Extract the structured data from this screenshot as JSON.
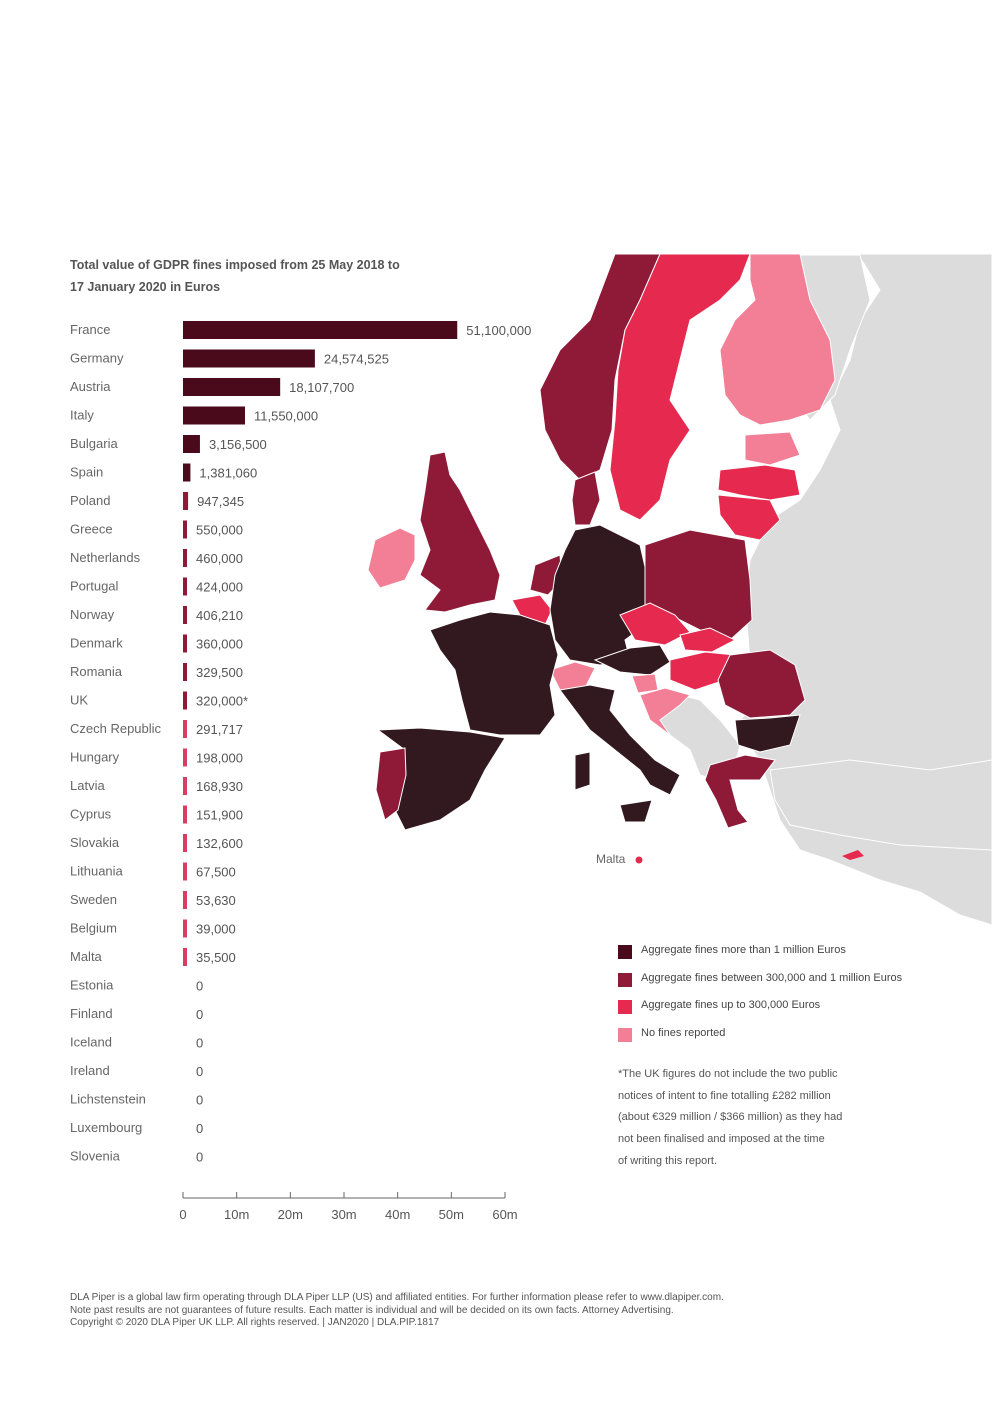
{
  "chart_data": {
    "type": "bar",
    "orientation": "horizontal",
    "title_lines": [
      "Total value of GDPR fines imposed from 25 May 2018 to",
      "17 January 2020 in Euros"
    ],
    "categories": [
      "France",
      "Germany",
      "Austria",
      "Italy",
      "Bulgaria",
      "Spain",
      "Poland",
      "Greece",
      "Netherlands",
      "Portugal",
      "Norway",
      "Denmark",
      "Romania",
      "UK",
      "Czech Republic",
      "Hungary",
      "Latvia",
      "Cyprus",
      "Slovakia",
      "Lithuania",
      "Sweden",
      "Belgium",
      "Malta",
      "Estonia",
      "Finland",
      "Iceland",
      "Ireland",
      "Lichstenstein",
      "Luxembourg",
      "Slovenia"
    ],
    "values": [
      51100000,
      24574525,
      18107700,
      11550000,
      3156500,
      1381060,
      947345,
      550000,
      460000,
      424000,
      406210,
      360000,
      329500,
      320000,
      291717,
      198000,
      168930,
      151900,
      132600,
      67500,
      53630,
      39000,
      35500,
      0,
      0,
      0,
      0,
      0,
      0,
      0
    ],
    "value_labels": [
      "51,100,000",
      "24,574,525",
      "18,107,700",
      "11,550,000",
      "3,156,500",
      "1,381,060",
      "947,345",
      "550,000",
      "460,000",
      "424,000",
      "406,210",
      "360,000",
      "329,500",
      "320,000*",
      "291,717",
      "198,000",
      "168,930",
      "151,900",
      "132,600",
      "67,500",
      "53,630",
      "39,000",
      "35,500",
      "0",
      "0",
      "0",
      "0",
      "0",
      "0",
      "0"
    ],
    "xlim": [
      0,
      60000000
    ],
    "x_ticks": [
      0,
      10000000,
      20000000,
      30000000,
      40000000,
      50000000,
      60000000
    ],
    "x_tick_labels": [
      "0",
      "10m",
      "20m",
      "30m",
      "40m",
      "50m",
      "60m"
    ],
    "grid": false
  },
  "colors": {
    "over_1m": "#4a0a1b",
    "between_300k_1m": "#8f1a38",
    "up_to_300k": "#e5294f",
    "no_fines": "#f27f95",
    "non_member": "#dcdcdc",
    "bar_over_1m": "#4a0a1b",
    "bar_between": "#8f1a38",
    "bar_up_to": "#d93d64",
    "map_dark": "#32191f"
  },
  "legend": [
    {
      "label": "Aggregate fines more than 1 million Euros",
      "color": "#4a0a1b"
    },
    {
      "label": "Aggregate fines between 300,000 and 1 million Euros",
      "color": "#8f1a38"
    },
    {
      "label": "Aggregate fines up to 300,000 Euros",
      "color": "#e5294f"
    },
    {
      "label": "No fines reported",
      "color": "#f27f95"
    }
  ],
  "map": {
    "malta_label": "Malta",
    "over_1m": [
      "France",
      "Germany",
      "Austria",
      "Italy",
      "Bulgaria",
      "Spain"
    ],
    "between_300k_1m": [
      "Poland",
      "Greece",
      "Netherlands",
      "Portugal",
      "Norway",
      "Denmark",
      "Romania",
      "UK"
    ],
    "up_to_300k": [
      "Czech Republic",
      "Hungary",
      "Latvia",
      "Cyprus",
      "Slovakia",
      "Lithuania",
      "Sweden",
      "Belgium",
      "Malta"
    ],
    "no_fines": [
      "Estonia",
      "Finland",
      "Iceland",
      "Ireland",
      "Lichstenstein",
      "Luxembourg",
      "Slovenia"
    ]
  },
  "footnote_lines": [
    "*The UK figures do not include the two public",
    "notices of intent to fine totalling £282 million",
    "(about €329 million / $366 million) as they had",
    "not been finalised and imposed at the time",
    "of writing this report."
  ],
  "footer_lines": [
    "DLA Piper is a global law firm operating through DLA Piper LLP (US) and affiliated entities. For further information please refer to www.dlapiper.com.",
    "Note past results are not guarantees of future results. Each matter is individual and will be decided on its own facts. Attorney Advertising.",
    "Copyright © 2020 DLA Piper UK LLP.  All rights reserved. | JAN2020 | DLA.PIP.1817"
  ]
}
